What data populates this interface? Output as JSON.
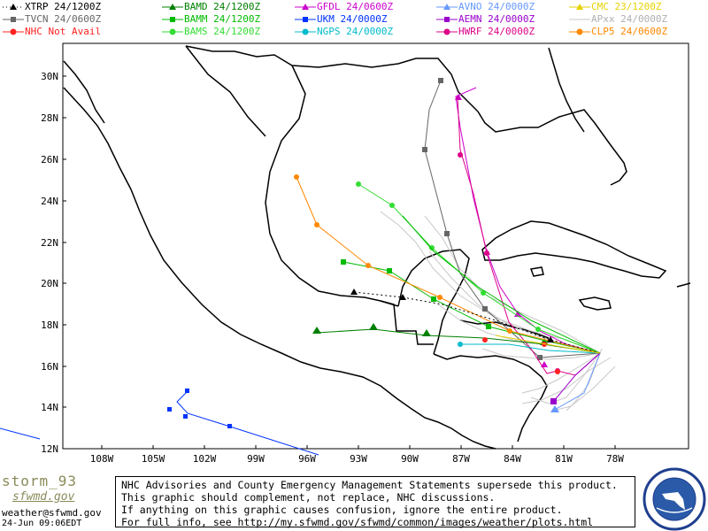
{
  "legend": [
    {
      "label": "XTRP  24/1200Z",
      "color": "#000000",
      "marker": "triangle",
      "dashed": true
    },
    {
      "label": "BAMD 24/1200Z",
      "color": "#008000",
      "marker": "triangle"
    },
    {
      "label": "GFDL  24/0600Z",
      "color": "#cc00cc",
      "marker": "triangle"
    },
    {
      "label": "AVNO 24/0000Z",
      "color": "#6699ff",
      "marker": "triangle"
    },
    {
      "label": "CMC 23/1200Z",
      "color": "#e6d200",
      "marker": "triangle"
    },
    {
      "label": "TVCN 24/0600Z",
      "color": "#666666",
      "marker": "square"
    },
    {
      "label": "BAMM 24/1200Z",
      "color": "#00bb00",
      "marker": "square"
    },
    {
      "label": "UKM   24/0000Z",
      "color": "#0033ff",
      "marker": "square"
    },
    {
      "label": "AEMN 24/0000Z",
      "color": "#9900cc",
      "marker": "square"
    },
    {
      "label": "APxx 24/0000Z",
      "color": "#c8c8c8",
      "marker": "none"
    },
    {
      "label": "NHC   Not Avail",
      "color": "#ff2222",
      "marker": "circle"
    },
    {
      "label": "BAMS 24/1200Z",
      "color": "#33dd33",
      "marker": "circle"
    },
    {
      "label": "NGPS 24/0000Z",
      "color": "#00bbcc",
      "marker": "circle"
    },
    {
      "label": "HWRF 24/0000Z",
      "color": "#dd0088",
      "marker": "circle"
    },
    {
      "label": "CLP5 24/0600Z",
      "color": "#ff8800",
      "marker": "circle"
    }
  ],
  "lat_labels": [
    "30N",
    "28N",
    "26N",
    "24N",
    "22N",
    "20N",
    "18N",
    "16N",
    "14N",
    "12N"
  ],
  "lon_labels": [
    "108W",
    "105W",
    "102W",
    "99W",
    "96W",
    "93W",
    "90W",
    "87W",
    "84W",
    "81W",
    "78W"
  ],
  "footer": {
    "brand": "storm_93",
    "brand2": "sfwmd.gov",
    "email": "weather@sfwmd.gov",
    "timestamp": "24-Jun 09:06EDT",
    "disclaimer": [
      "NHC Advisories and County Emergency Management Statements supersede this product.",
      "This graphic should complement, not replace, NHC discussions.",
      "If anything on this graphic causes confusion, ignore the entire product.",
      "For full info, see  http://my.sfwmd.gov/sfwmd/common/images/weather/plots.html"
    ],
    "seal_text": "SOUTH FLORIDA WATER MANAGEMENT DISTRICT"
  }
}
